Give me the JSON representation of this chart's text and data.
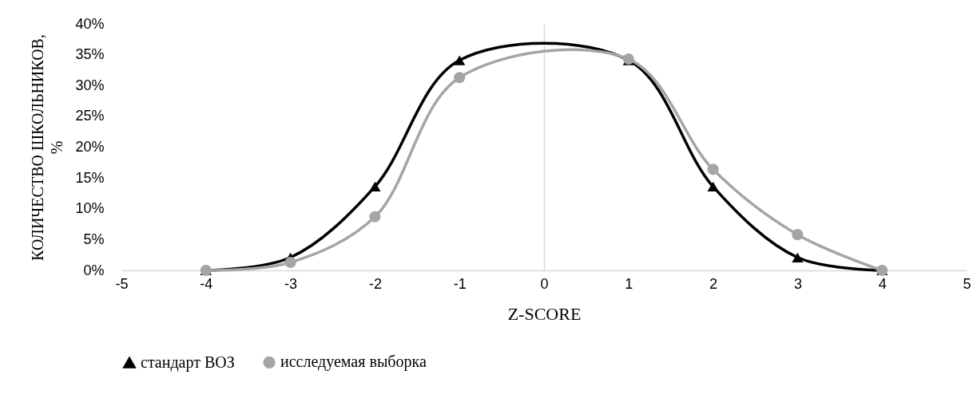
{
  "chart_data": {
    "type": "line",
    "xlabel": "Z-SCORE",
    "ylabel": "КОЛИЧЕСТВО ШКОЛЬНИКОВ, %",
    "x": [
      -4,
      -3,
      -2,
      -1,
      1,
      2,
      3,
      4
    ],
    "series": [
      {
        "name": "стандарт ВОЗ",
        "color": "#000000",
        "marker": "triangle",
        "values": [
          0,
          2.1,
          13.6,
          34.1,
          34.1,
          13.6,
          2.1,
          0
        ]
      },
      {
        "name": "исследуемая выборка",
        "color": "#a5a5a5",
        "marker": "circle",
        "values": [
          0,
          1.3,
          8.7,
          31.3,
          34.3,
          16.4,
          5.8,
          0
        ]
      }
    ],
    "xlim": [
      -5,
      5
    ],
    "xticks": [
      -5,
      -4,
      -3,
      -2,
      -1,
      0,
      1,
      2,
      3,
      4,
      5
    ],
    "ylim": [
      0,
      40
    ],
    "yticks": [
      {
        "value": 0,
        "label": "0%"
      },
      {
        "value": 5,
        "label": "5%"
      },
      {
        "value": 10,
        "label": "10%"
      },
      {
        "value": 15,
        "label": "15%"
      },
      {
        "value": 20,
        "label": "20%"
      },
      {
        "value": 25,
        "label": "25%"
      },
      {
        "value": 30,
        "label": "30%"
      },
      {
        "value": 35,
        "label": "35%"
      },
      {
        "value": 40,
        "label": "40%"
      }
    ],
    "legend": "bottom"
  }
}
